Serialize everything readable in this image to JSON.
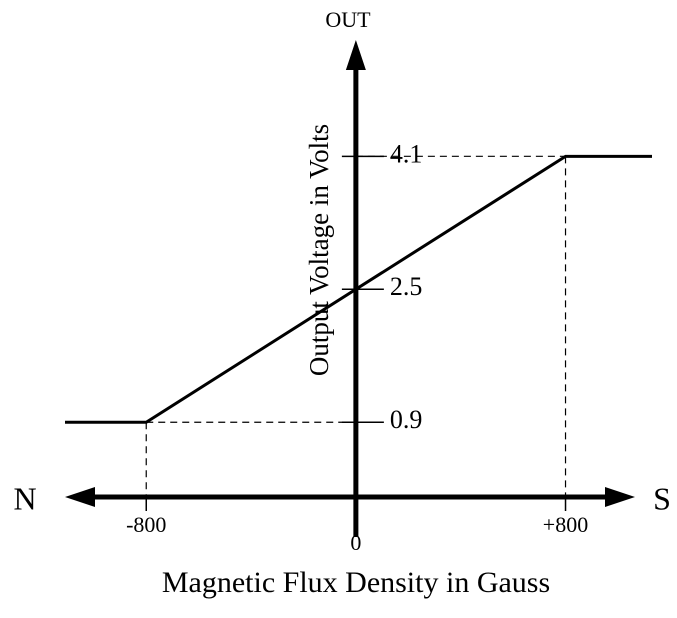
{
  "chart_data": {
    "type": "line",
    "y_label": "Output Voltage in Volts",
    "x_label": "Magnetic Flux Density in Gauss",
    "y_axis_title": "OUT",
    "x_left_label": "N",
    "x_right_label": "S",
    "x": [
      -1110,
      -800,
      800,
      1130
    ],
    "values": [
      0.9,
      0.9,
      4.1,
      4.1
    ],
    "color": "#000000",
    "xlim": [
      -1110,
      1130
    ],
    "ylim": [
      0,
      5.5
    ],
    "xticks": [
      -800,
      0,
      {
        "value": 800,
        "label": "+800"
      }
    ],
    "yticks": [
      0.9,
      2.5,
      4.1
    ]
  }
}
